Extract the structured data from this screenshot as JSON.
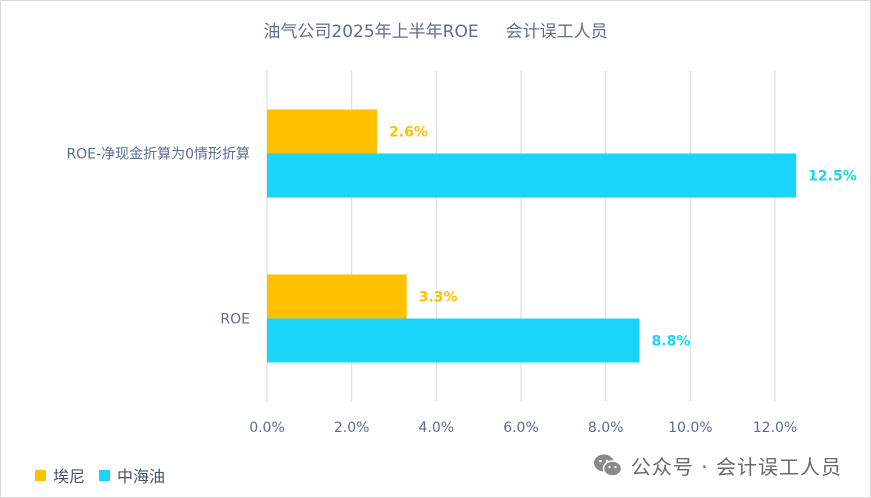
{
  "chart_data": {
    "type": "bar",
    "orientation": "horizontal",
    "title": "油气公司2025年上半年ROE     会计误工人员",
    "categories": [
      "ROE-净现金折算为0情形折算",
      "ROE"
    ],
    "series": [
      {
        "name": "埃尼",
        "color": "#ffc000",
        "values": [
          2.6,
          3.3
        ],
        "labels": [
          "2.6%",
          "3.3%"
        ]
      },
      {
        "name": "中海油",
        "color": "#1ad4fa",
        "values": [
          12.5,
          8.8
        ],
        "labels": [
          "12.5%",
          "8.8%"
        ]
      }
    ],
    "xlim": [
      0,
      12
    ],
    "xticks": [
      "0.0%",
      "2.0%",
      "4.0%",
      "6.0%",
      "8.0%",
      "10.0%",
      "12.0%"
    ],
    "grid": true,
    "legend_position": "bottom-left"
  },
  "watermark": {
    "icon": "wechat-icon",
    "text": "公众号 · 会计误工人员"
  }
}
